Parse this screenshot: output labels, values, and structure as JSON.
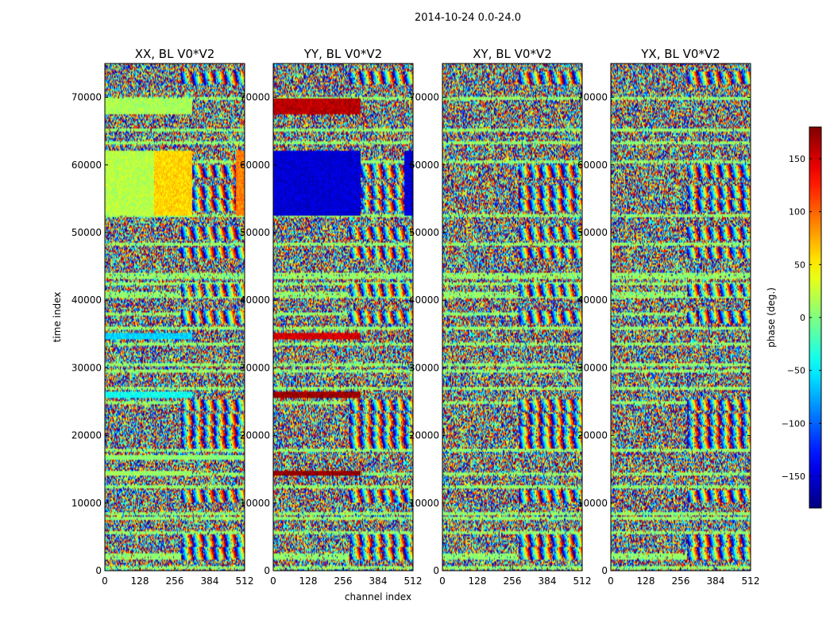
{
  "suptitle": "2014-10-24 0.0-24.0",
  "chart_data": [
    {
      "type": "heatmap",
      "title": "XX, BL V0*V2",
      "xlabel": "",
      "ylabel": "time index",
      "xlim": [
        0,
        512
      ],
      "ylim": [
        0,
        75000
      ],
      "xticks": [
        "0",
        "128",
        "256",
        "384",
        "512"
      ],
      "yticks": [
        "0",
        "10000",
        "20000",
        "30000",
        "40000",
        "50000",
        "60000",
        "70000"
      ],
      "bands": [
        {
          "y": [
            67500,
            69800
          ],
          "x": [
            0,
            320
          ],
          "phase": 15
        },
        {
          "y": [
            52500,
            62000
          ],
          "x": [
            0,
            180
          ],
          "phase": 20
        },
        {
          "y": [
            52500,
            62000
          ],
          "x": [
            180,
            320
          ],
          "phase": 60
        },
        {
          "y": [
            52500,
            62000
          ],
          "x": [
            480,
            512
          ],
          "phase": 90
        },
        {
          "y": [
            34200,
            35200
          ],
          "x": [
            0,
            320
          ],
          "phase": -60
        },
        {
          "y": [
            25500,
            26500
          ],
          "x": [
            0,
            320
          ],
          "phase": -40
        },
        {
          "y": [
            16500,
            17200
          ],
          "x": [
            0,
            512
          ],
          "phase": 5
        },
        {
          "y": [
            14000,
            14800
          ],
          "x": [
            0,
            320
          ],
          "phase": 10
        }
      ]
    },
    {
      "type": "heatmap",
      "title": "YY, BL V0*V2",
      "xlabel": "channel index",
      "ylabel": "",
      "xlim": [
        0,
        512
      ],
      "ylim": [
        0,
        75000
      ],
      "xticks": [
        "0",
        "128",
        "256",
        "384",
        "512"
      ],
      "yticks": [
        "0",
        "10000",
        "20000",
        "30000",
        "40000",
        "50000",
        "60000",
        "70000"
      ],
      "bands": [
        {
          "y": [
            67500,
            69800
          ],
          "x": [
            0,
            320
          ],
          "phase": 160
        },
        {
          "y": [
            52500,
            62000
          ],
          "x": [
            0,
            320
          ],
          "phase": -150
        },
        {
          "y": [
            52500,
            62000
          ],
          "x": [
            480,
            512
          ],
          "phase": -150
        },
        {
          "y": [
            34200,
            35200
          ],
          "x": [
            0,
            320
          ],
          "phase": 150
        },
        {
          "y": [
            25500,
            26500
          ],
          "x": [
            0,
            320
          ],
          "phase": 170
        },
        {
          "y": [
            14000,
            14800
          ],
          "x": [
            0,
            320
          ],
          "phase": 175
        }
      ]
    },
    {
      "type": "heatmap",
      "title": "XY, BL V0*V2",
      "xlabel": "",
      "ylabel": "",
      "xlim": [
        0,
        512
      ],
      "ylim": [
        0,
        75000
      ],
      "xticks": [
        "0",
        "128",
        "256",
        "384",
        "512"
      ],
      "yticks": [
        "0",
        "10000",
        "20000",
        "30000",
        "40000",
        "50000",
        "60000",
        "70000"
      ],
      "bands": []
    },
    {
      "type": "heatmap",
      "title": "YX, BL V0*V2",
      "xlabel": "",
      "ylabel": "",
      "xlim": [
        0,
        512
      ],
      "ylim": [
        0,
        75000
      ],
      "xticks": [
        "0",
        "128",
        "256",
        "384",
        "512"
      ],
      "yticks": [
        "0",
        "10000",
        "20000",
        "30000",
        "40000",
        "50000",
        "60000",
        "70000"
      ],
      "bands": []
    }
  ],
  "colorbar": {
    "label": "phase (deg.)",
    "range": [
      -180,
      180
    ],
    "ticks": [
      "150",
      "100",
      "50",
      "0",
      "−50",
      "−100",
      "−150"
    ],
    "tick_values": [
      150,
      100,
      50,
      0,
      -50,
      -100,
      -150
    ]
  },
  "shared": {
    "grey_rows": [
      700,
      2000,
      2600,
      5900,
      7900,
      8600,
      12700,
      14600,
      18000,
      25000,
      27200,
      29800,
      30600,
      33700,
      36100,
      38300,
      40800,
      41300,
      42700,
      43500,
      44100,
      48500,
      52800,
      60600,
      63500,
      65500,
      70100
    ],
    "fringe_rows": [
      72900,
      59000,
      56000,
      54000,
      50000,
      47000,
      41500,
      37500,
      24500,
      22400,
      20500,
      19000,
      11000,
      4500,
      2500
    ]
  }
}
